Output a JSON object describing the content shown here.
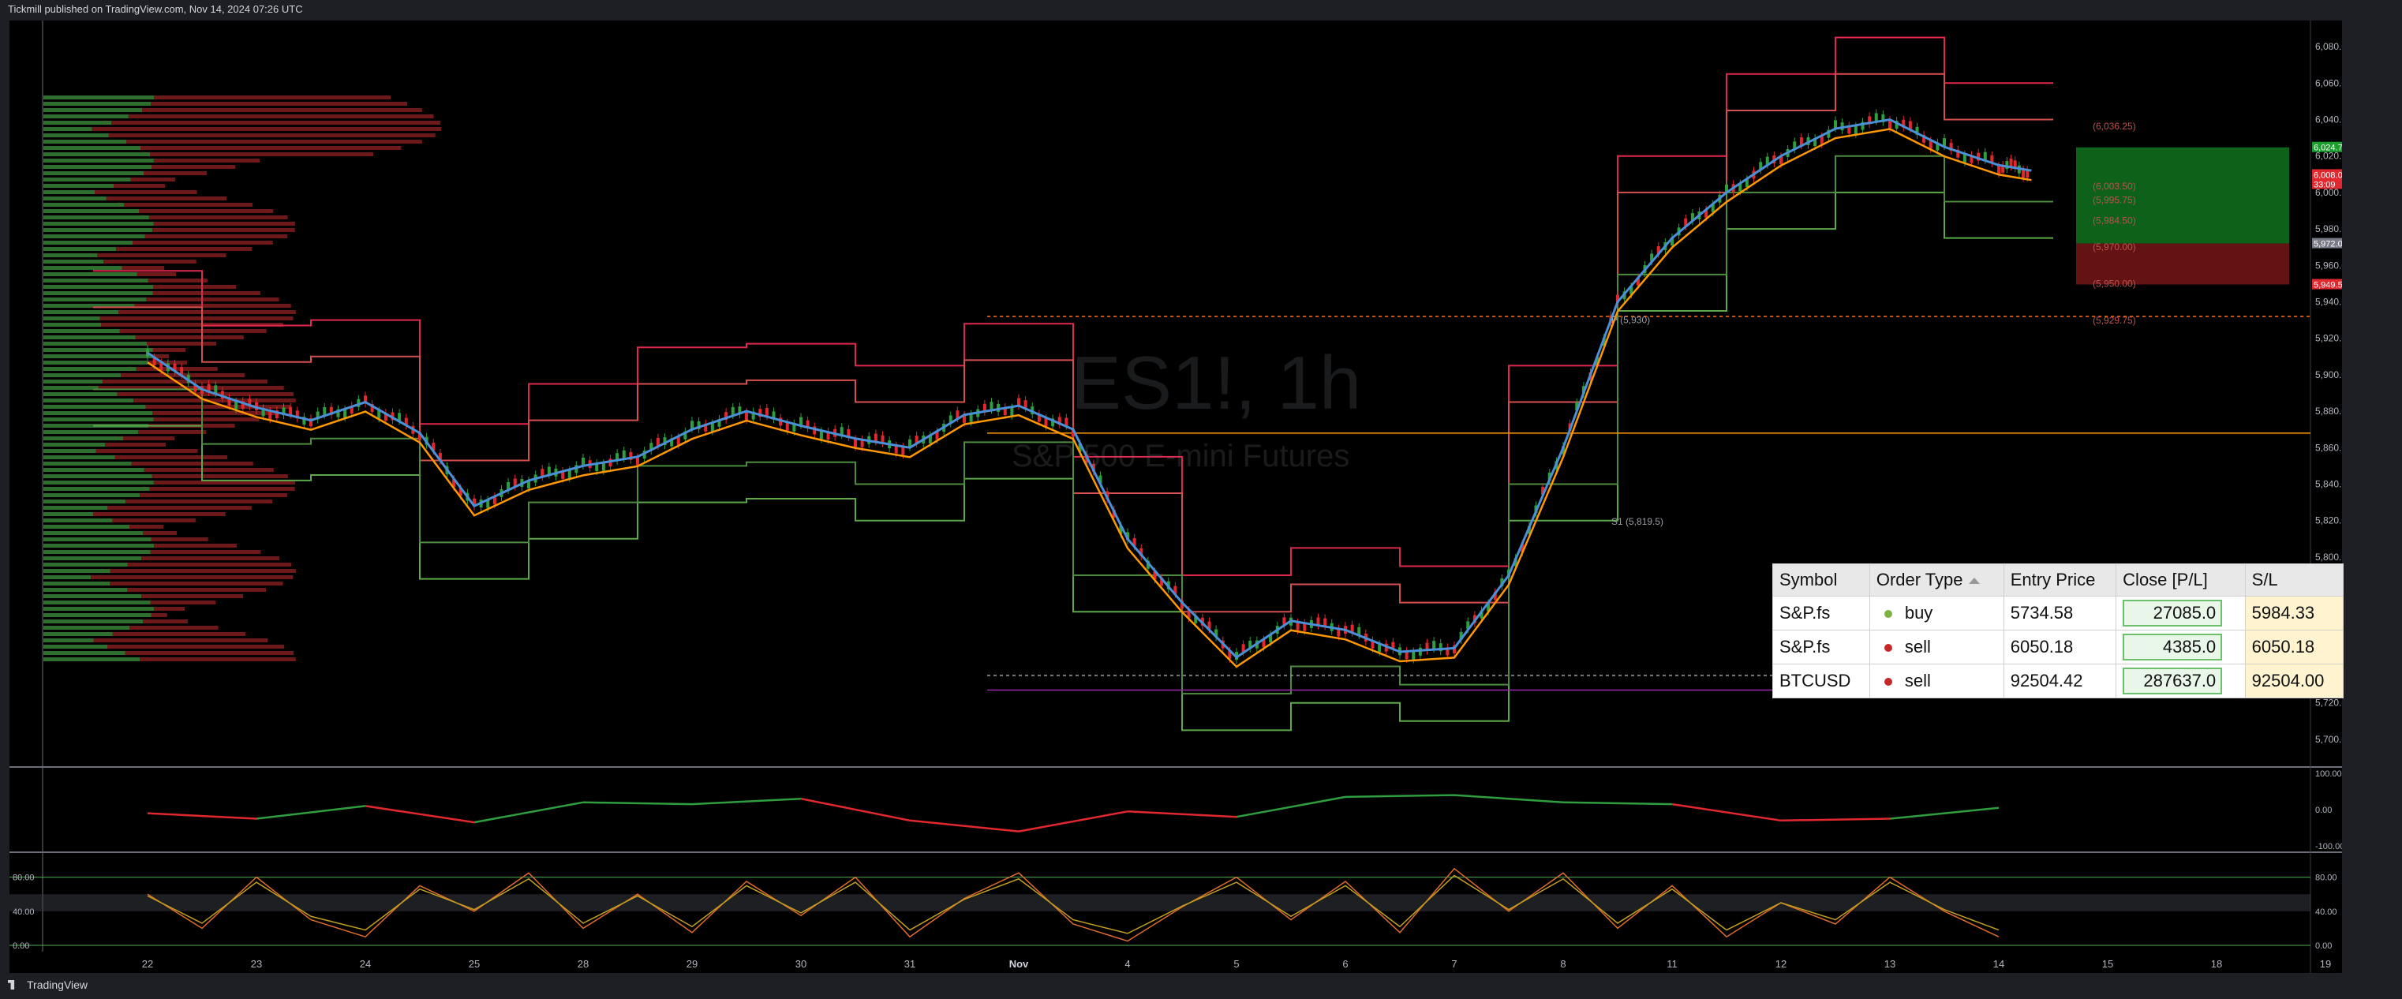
{
  "header": {
    "text": "Tickmill published on TradingView.com, Nov 14, 2024 07:26 UTC"
  },
  "footer": {
    "brand": "TradingView"
  },
  "watermark": {
    "ticker": "ES1!, 1h",
    "name": "S&P 500 E-mini Futures"
  },
  "colors": {
    "bg": "#000000",
    "up": "#2e9e3e",
    "down": "#e0282e",
    "ema_fast": "#4a90d9",
    "ema_slow": "#ff9800",
    "profile_green": "#3a8a3a",
    "profile_red": "#8a1f1f"
  },
  "orders_table": {
    "columns": [
      "Symbol",
      "Order Type",
      "Entry Price",
      "Close [P/L]",
      "S/L"
    ],
    "rows": [
      {
        "symbol": "S&P.fs",
        "type": "buy",
        "entry": "5734.58",
        "pl": "27085.0",
        "sl": "5984.33",
        "dot": "#7cb342"
      },
      {
        "symbol": "S&P.fs",
        "type": "sell",
        "entry": "6050.18",
        "pl": "4385.0",
        "sl": "6050.18",
        "dot": "#c62828"
      },
      {
        "symbol": "BTCUSD",
        "type": "sell",
        "entry": "92504.42",
        "pl": "287637.0",
        "sl": "92504.00",
        "dot": "#c62828"
      }
    ]
  },
  "chart_data": [
    {
      "type": "line",
      "title": "ES1!, 1h",
      "subtitle": "S&P 500 E-mini Futures",
      "x_labels": [
        "22",
        "23",
        "24",
        "25",
        "28",
        "29",
        "30",
        "31",
        "Nov",
        "4",
        "5",
        "6",
        "7",
        "8",
        "11",
        "12",
        "13",
        "14",
        "15",
        "18",
        "19"
      ],
      "y_ticks": [
        "6,080.00",
        "6,060.00",
        "6,040.00",
        "6,020.00",
        "6,000.00",
        "5,980.00",
        "5,960.00",
        "5,940.00",
        "5,920.00",
        "5,900.00",
        "5,880.00",
        "5,860.00",
        "5,840.00",
        "5,820.00",
        "5,800.00",
        "5,780.00",
        "5,760.00",
        "5,740.00",
        "5,720.00",
        "5,700.00"
      ],
      "ylim": [
        5690,
        6090
      ],
      "series": [
        {
          "x": [
            0,
            0.5,
            1,
            1.5,
            2,
            2.5,
            3,
            3.5,
            4,
            4.5,
            5,
            5.5,
            6,
            6.5,
            7,
            7.5,
            8,
            8.5,
            9,
            9.5,
            10,
            10.5,
            11,
            11.5,
            12,
            12.5,
            13,
            13.5,
            14,
            14.5,
            15,
            15.5,
            16,
            16.5,
            17,
            17.3
          ],
          "values": [
            5912,
            5892,
            5882,
            5875,
            5885,
            5868,
            5828,
            5842,
            5850,
            5855,
            5870,
            5880,
            5872,
            5865,
            5860,
            5878,
            5883,
            5870,
            5810,
            5775,
            5745,
            5765,
            5760,
            5748,
            5750,
            5790,
            5860,
            5940,
            5975,
            6000,
            6020,
            6035,
            6040,
            6025,
            6015,
            6012
          ]
        }
      ],
      "annotations": [
        "(6,036.25)",
        "(6,003.50)",
        "(5,995.75)",
        "(5,984.50)",
        "(5,970.00)",
        "(5,950.00)",
        "P (5,930)",
        "(5,929.75)",
        "S1 (5,819.5)"
      ],
      "price_labels": [
        "6,024.75",
        "6,008.00",
        "33:09",
        "5,972.00",
        "5,949.50"
      ]
    },
    {
      "type": "line",
      "y_ticks": [
        "100.00",
        "0.00",
        "-100.00"
      ],
      "ylim": [
        -100,
        100
      ],
      "series": [
        {
          "x": [
            0,
            1,
            2,
            3,
            4,
            5,
            6,
            7,
            8,
            9,
            10,
            11,
            12,
            13,
            14,
            15,
            16,
            17
          ],
          "values": [
            -10,
            -25,
            10,
            -35,
            20,
            15,
            30,
            -30,
            -60,
            -5,
            -20,
            35,
            40,
            20,
            15,
            -30,
            -25,
            5
          ]
        }
      ]
    },
    {
      "type": "line",
      "y_ticks": [
        "80.00",
        "40.00",
        "0.00"
      ],
      "ylim": [
        0,
        100
      ],
      "series": [
        {
          "x": [
            0,
            0.5,
            1,
            1.5,
            2,
            2.5,
            3,
            3.5,
            4,
            4.5,
            5,
            5.5,
            6,
            6.5,
            7,
            7.5,
            8,
            8.5,
            9,
            9.5,
            10,
            10.5,
            11,
            11.5,
            12,
            12.5,
            13,
            13.5,
            14,
            14.5,
            15,
            15.5,
            16,
            16.5,
            17
          ],
          "values": [
            60,
            20,
            80,
            30,
            10,
            70,
            40,
            85,
            20,
            60,
            15,
            75,
            35,
            80,
            10,
            55,
            85,
            25,
            5,
            45,
            80,
            30,
            75,
            15,
            90,
            40,
            85,
            20,
            70,
            10,
            50,
            25,
            80,
            40,
            10
          ]
        }
      ]
    }
  ]
}
